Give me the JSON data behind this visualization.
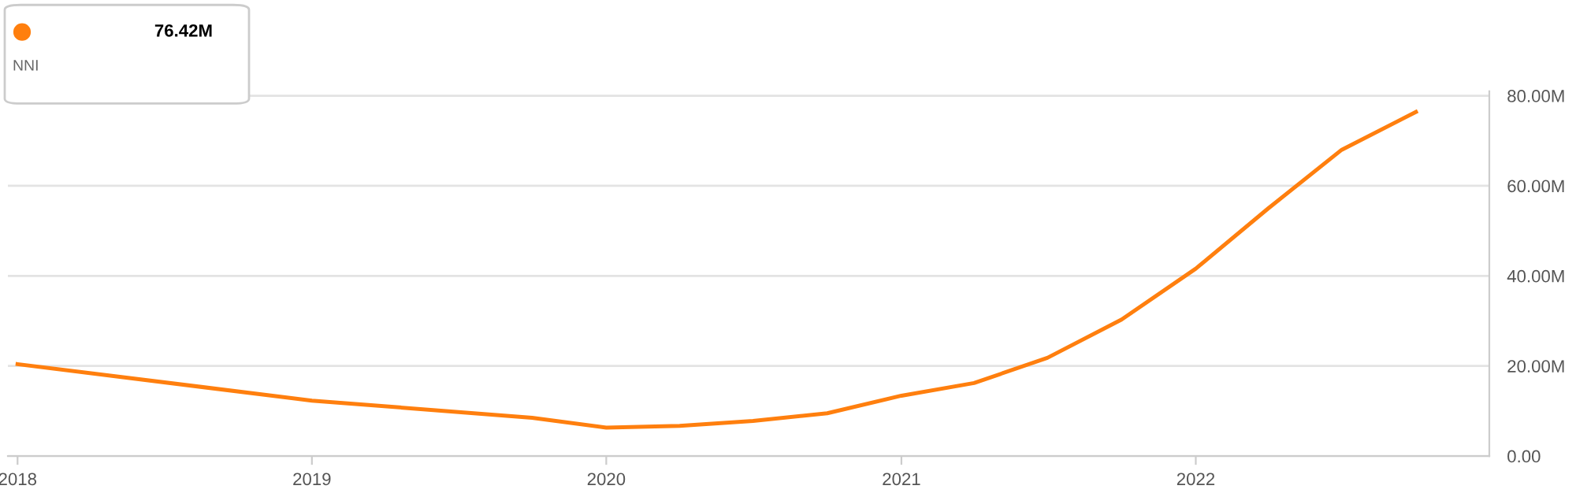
{
  "chart_data": {
    "type": "line",
    "subtitle": "NNI",
    "x": [
      "2018-01-01",
      "2019-01-01",
      "2019-10-01",
      "2020-01-01",
      "2020-04-01",
      "2020-07-01",
      "2020-10-01",
      "2021-01-01",
      "2021-04-01",
      "2021-07-01",
      "2021-10-01",
      "2022-01-01",
      "2022-04-01",
      "2022-07-01",
      "2022-10-01"
    ],
    "series": [
      {
        "color": "#ff7f0e",
        "values": [
          20.4,
          12.3,
          8.5,
          6.3,
          6.7,
          7.8,
          9.5,
          13.4,
          16.2,
          21.8,
          30.3,
          41.6,
          55.0,
          68.0,
          76.4
        ]
      }
    ],
    "annotations": [
      "76.42M"
    ],
    "xlim": [
      "2017-12-20",
      "2022-12-31"
    ],
    "xticks": [
      {
        "value": "2018-01-01",
        "label": "2018"
      },
      {
        "value": "2019-01-01",
        "label": "2019"
      },
      {
        "value": "2020-01-01",
        "label": "2020"
      },
      {
        "value": "2021-01-01",
        "label": "2021"
      },
      {
        "value": "2022-01-01",
        "label": "2022"
      }
    ],
    "ylim": [
      0,
      81
    ],
    "yticks": [
      {
        "value": 0,
        "label": "0.00"
      },
      {
        "value": 20,
        "label": "20.00M"
      },
      {
        "value": 40,
        "label": "40.00M"
      },
      {
        "value": 60,
        "label": "60.00M"
      },
      {
        "value": 80,
        "label": "80.00M"
      }
    ],
    "grid": "y",
    "marker": "none",
    "line_style": "solid"
  }
}
